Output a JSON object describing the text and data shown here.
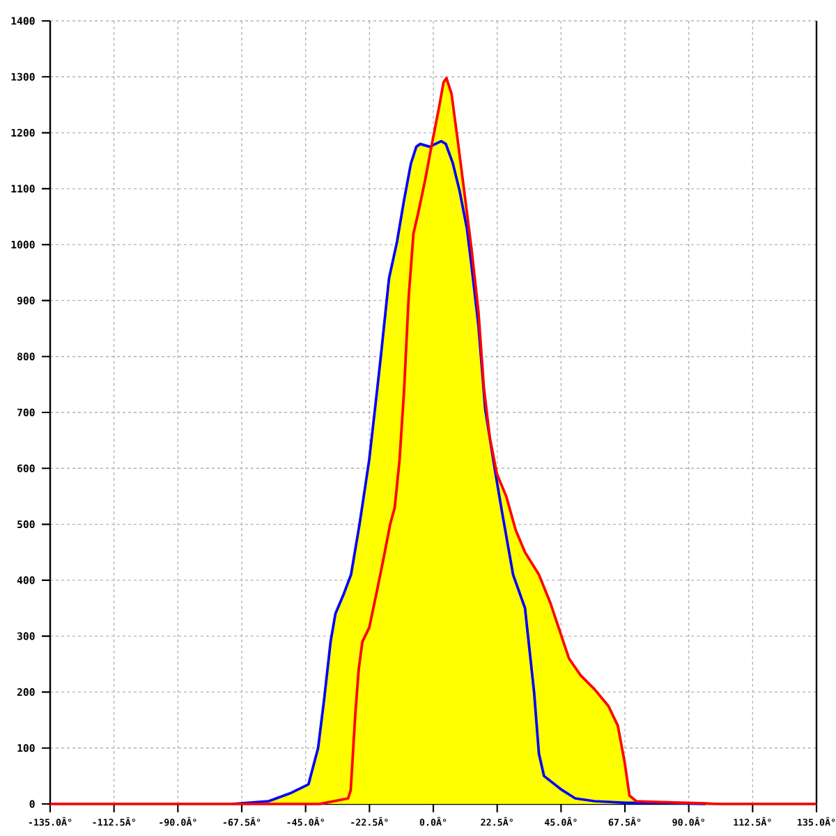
{
  "chart_data": {
    "type": "line",
    "xlim": [
      -135,
      135
    ],
    "ylim": [
      0,
      1400
    ],
    "xticks": [
      {
        "value": -135,
        "label": "-135.0Â°"
      },
      {
        "value": -112.5,
        "label": "-112.5Â°"
      },
      {
        "value": -90,
        "label": "-90.0Â°"
      },
      {
        "value": -67.5,
        "label": "-67.5Â°"
      },
      {
        "value": -45,
        "label": "-45.0Â°"
      },
      {
        "value": -22.5,
        "label": "-22.5Â°"
      },
      {
        "value": 0,
        "label": "0.0Â°"
      },
      {
        "value": 22.5,
        "label": "22.5Â°"
      },
      {
        "value": 45,
        "label": "45.0Â°"
      },
      {
        "value": 67.5,
        "label": "67.5Â°"
      },
      {
        "value": 90,
        "label": "90.0Â°"
      },
      {
        "value": 112.5,
        "label": "112.5Â°"
      },
      {
        "value": 135,
        "label": "135.0Â°"
      }
    ],
    "yticks": [
      0,
      100,
      200,
      300,
      400,
      500,
      600,
      700,
      800,
      900,
      1000,
      1100,
      1200,
      1300,
      1400
    ],
    "grid": true,
    "series": [
      {
        "type": "area",
        "color": "#ffff00",
        "x": [
          -71,
          -58,
          -50,
          -44,
          -40.6,
          -38.4,
          -36.2,
          -34.5,
          -31.6,
          -29,
          -26,
          -22.6,
          -19.8,
          -18.5,
          -15.6,
          -12.8,
          -10.3,
          -7.9,
          -6,
          -4.6,
          -1.3,
          -0.5,
          2,
          3.6,
          4.6,
          6.4,
          8.5,
          10.9,
          13.4,
          15.9,
          17.8,
          19.9,
          22.4,
          25.7,
          29,
          32.3,
          37.2,
          41.2,
          44.5,
          47.8,
          51.9,
          56.8,
          61.7,
          65,
          67.4,
          69.1,
          71.5,
          76.4,
          89.5,
          96,
          100
        ],
        "values": [
          0,
          5,
          20,
          35,
          100,
          190,
          290,
          340,
          375,
          410,
          500,
          615,
          740,
          800,
          940,
          1005,
          1080,
          1145,
          1175,
          1180,
          1175,
          1180,
          1245,
          1290,
          1298,
          1270,
          1190,
          1095,
          995,
          880,
          745,
          655,
          590,
          550,
          490,
          450,
          410,
          360,
          310,
          260,
          230,
          205,
          175,
          140,
          75,
          15,
          5,
          4,
          2,
          1,
          0
        ]
      },
      {
        "color": "#0000ff",
        "x": [
          -71,
          -58,
          -50,
          -44,
          -40.6,
          -38.4,
          -36.2,
          -34.5,
          -31.6,
          -29,
          -26,
          -22.6,
          -19.8,
          -18.5,
          -15.6,
          -12.8,
          -10.3,
          -7.9,
          -6,
          -4.6,
          -1.3,
          2.8,
          4.4,
          6.9,
          9.3,
          11.8,
          13.4,
          15.9,
          18.3,
          21.6,
          24.1,
          28.1,
          32.3,
          35.5,
          37.2,
          39,
          45.3,
          50,
          56.8,
          68,
          81,
          96
        ],
        "values": [
          0,
          5,
          20,
          35,
          100,
          190,
          290,
          340,
          375,
          410,
          500,
          615,
          740,
          800,
          940,
          1005,
          1080,
          1145,
          1175,
          1180,
          1175,
          1185,
          1180,
          1145,
          1095,
          1030,
          965,
          855,
          705,
          600,
          525,
          410,
          350,
          200,
          90,
          50,
          25,
          10,
          5,
          2,
          2,
          0
        ]
      },
      {
        "color": "#ff0000",
        "x": [
          -135,
          -40,
          -38,
          -30,
          -29.1,
          -27.5,
          -26.3,
          -25,
          -22.6,
          -20.1,
          -17.7,
          -15.2,
          -13.6,
          -11.9,
          -10.3,
          -8.7,
          -7,
          -5.4,
          -2.9,
          -0.5,
          2,
          3.6,
          4.6,
          6.4,
          8.5,
          10.9,
          13.4,
          15.9,
          17.8,
          19.9,
          22.4,
          25.7,
          29,
          32.3,
          37.2,
          41.2,
          44.5,
          47.8,
          51.9,
          56.8,
          61.7,
          65,
          67.4,
          69.1,
          71.5,
          76.4,
          89.5,
          96,
          100,
          135
        ],
        "values": [
          0,
          0,
          2,
          10,
          25,
          160,
          240,
          290,
          315,
          375,
          435,
          500,
          530,
          615,
          740,
          905,
          1020,
          1055,
          1115,
          1180,
          1245,
          1290,
          1298,
          1270,
          1190,
          1095,
          995,
          880,
          745,
          655,
          590,
          550,
          490,
          450,
          410,
          360,
          310,
          260,
          230,
          205,
          175,
          140,
          75,
          15,
          5,
          4,
          2,
          1,
          0,
          0
        ]
      }
    ]
  }
}
